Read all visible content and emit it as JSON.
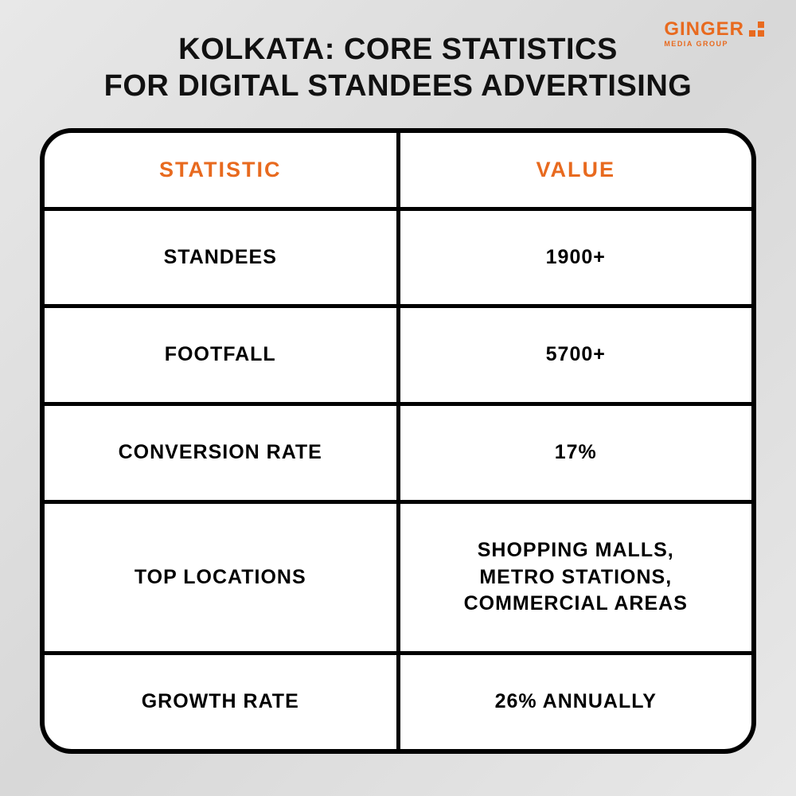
{
  "colors": {
    "accent": "#e86a1f",
    "text": "#111111",
    "table_border": "#000000",
    "table_bg": "#ffffff",
    "page_bg_start": "#e8e8e8",
    "page_bg_end": "#d8d8d8"
  },
  "logo": {
    "main": "GINGER",
    "sub": "MEDIA GROUP"
  },
  "title": "KOLKATA: CORE STATISTICS\nFOR DIGITAL STANDEES ADVERTISING",
  "table": {
    "type": "table",
    "border_width": 6,
    "border_radius": 40,
    "inner_border_width": 5,
    "header_fontsize": 27,
    "cell_fontsize": 25,
    "font_weight": 700,
    "columns": [
      {
        "label": "STATISTIC",
        "color": "#e86a1f"
      },
      {
        "label": "VALUE",
        "color": "#e86a1f"
      }
    ],
    "rows": [
      {
        "stat": "STANDEES",
        "value": "1900+"
      },
      {
        "stat": "FOOTFALL",
        "value": "5700+"
      },
      {
        "stat": "CONVERSION RATE",
        "value": "17%"
      },
      {
        "stat": "TOP LOCATIONS",
        "value": "SHOPPING MALLS,\nMETRO STATIONS,\nCOMMERCIAL AREAS"
      },
      {
        "stat": "GROWTH RATE",
        "value": "26% ANNUALLY"
      }
    ]
  }
}
